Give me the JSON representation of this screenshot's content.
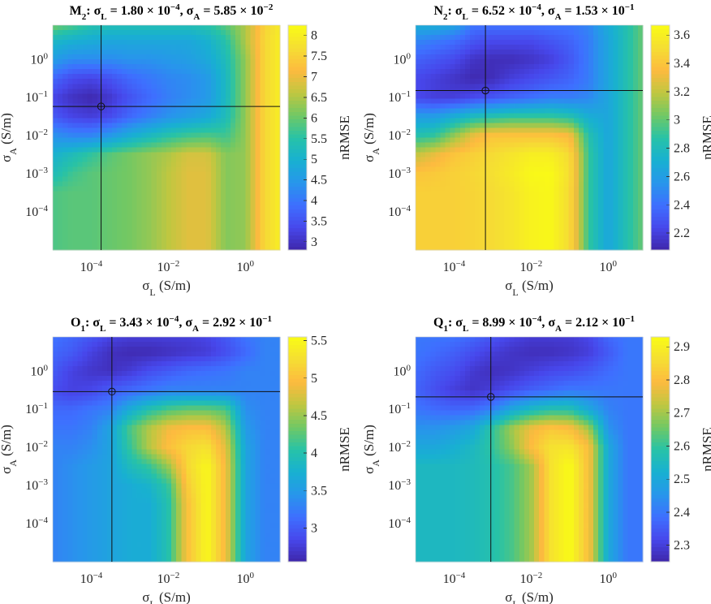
{
  "chart_data": [
    {
      "type": "heatmap",
      "title": {
        "constituent": "M",
        "constituent_sub": "2",
        "sigma_L": {
          "mantissa": "1.80",
          "exponent": "−4"
        },
        "sigma_A": {
          "mantissa": "5.85",
          "exponent": "−2"
        }
      },
      "best": {
        "sigma_L": 0.00018,
        "sigma_A": 0.0585
      },
      "colorbar": {
        "label": "nRMSE",
        "range": [
          2.8,
          8.25
        ],
        "ticks": [
          "3",
          "3.5",
          "4",
          "4.5",
          "5",
          "5.5",
          "6",
          "6.5",
          "7",
          "7.5",
          "8"
        ]
      },
      "z": [
        [
          6.3,
          6.0,
          5.6,
          5.5,
          5.5,
          5.5,
          5.5,
          5.5,
          5.6,
          6.0,
          6.5,
          7.5,
          8.0
        ],
        [
          5.2,
          5.0,
          4.9,
          4.8,
          4.8,
          4.8,
          4.8,
          4.8,
          5.0,
          5.5,
          6.5,
          7.6,
          8.1
        ],
        [
          4.6,
          4.3,
          4.3,
          4.3,
          4.4,
          4.4,
          4.5,
          4.6,
          4.8,
          5.3,
          6.3,
          7.6,
          8.1
        ],
        [
          3.8,
          3.4,
          3.3,
          3.5,
          3.8,
          4.0,
          4.2,
          4.3,
          4.5,
          5.2,
          6.3,
          7.6,
          8.1
        ],
        [
          3.3,
          3.0,
          2.85,
          3.1,
          3.5,
          3.8,
          4.1,
          4.3,
          4.5,
          5.2,
          6.3,
          7.6,
          8.1
        ],
        [
          3.6,
          3.3,
          3.2,
          3.4,
          3.8,
          4.1,
          4.4,
          4.6,
          4.8,
          5.3,
          6.3,
          7.6,
          8.1
        ],
        [
          4.4,
          4.2,
          4.2,
          4.5,
          4.9,
          5.2,
          5.5,
          5.7,
          5.8,
          5.7,
          6.3,
          7.6,
          8.1
        ],
        [
          5.0,
          5.3,
          5.6,
          5.9,
          6.1,
          6.3,
          6.5,
          6.8,
          6.8,
          6.2,
          6.3,
          7.6,
          8.1
        ],
        [
          5.3,
          5.7,
          5.9,
          6.0,
          6.1,
          6.3,
          6.6,
          6.9,
          6.9,
          6.2,
          6.3,
          7.6,
          8.1
        ],
        [
          5.8,
          5.9,
          5.9,
          6.0,
          6.1,
          6.3,
          6.6,
          6.9,
          6.9,
          6.2,
          6.3,
          7.6,
          8.1
        ],
        [
          5.8,
          5.9,
          5.9,
          6.0,
          6.1,
          6.3,
          6.6,
          6.9,
          6.9,
          6.2,
          6.3,
          7.6,
          8.1
        ],
        [
          5.8,
          5.9,
          5.9,
          6.0,
          6.1,
          6.3,
          6.6,
          6.9,
          6.9,
          6.2,
          6.3,
          7.6,
          8.1
        ],
        [
          5.8,
          5.9,
          5.9,
          6.0,
          6.1,
          6.3,
          6.6,
          6.9,
          6.9,
          6.2,
          6.3,
          7.6,
          8.1
        ]
      ]
    },
    {
      "type": "heatmap",
      "title": {
        "constituent": "N",
        "constituent_sub": "2",
        "sigma_L": {
          "mantissa": "6.52",
          "exponent": "−4"
        },
        "sigma_A": {
          "mantissa": "1.53",
          "exponent": "−1"
        }
      },
      "best": {
        "sigma_L": 0.000652,
        "sigma_A": 0.153
      },
      "colorbar": {
        "label": "nRMSE",
        "range": [
          2.08,
          3.67
        ],
        "ticks": [
          "2.2",
          "2.4",
          "2.6",
          "2.8",
          "3",
          "3.2",
          "3.4",
          "3.6"
        ]
      },
      "z": [
        [
          2.75,
          2.75,
          2.7,
          2.45,
          2.45,
          2.45,
          2.45,
          2.45,
          2.45,
          2.5,
          2.7,
          2.85,
          3.05
        ],
        [
          2.5,
          2.45,
          2.4,
          2.3,
          2.25,
          2.25,
          2.25,
          2.3,
          2.35,
          2.45,
          2.65,
          2.85,
          3.05
        ],
        [
          2.35,
          2.3,
          2.25,
          2.15,
          2.12,
          2.12,
          2.15,
          2.2,
          2.3,
          2.45,
          2.65,
          2.85,
          3.05
        ],
        [
          2.25,
          2.2,
          2.15,
          2.1,
          2.12,
          2.2,
          2.25,
          2.3,
          2.35,
          2.45,
          2.65,
          2.85,
          3.05
        ],
        [
          2.25,
          2.2,
          2.2,
          2.25,
          2.3,
          2.35,
          2.4,
          2.45,
          2.45,
          2.5,
          2.65,
          2.85,
          3.05
        ],
        [
          2.6,
          2.6,
          2.7,
          2.8,
          2.85,
          2.9,
          2.9,
          2.9,
          2.85,
          2.7,
          2.65,
          2.85,
          3.05
        ],
        [
          2.85,
          2.9,
          3.1,
          3.3,
          3.4,
          3.4,
          3.4,
          3.4,
          3.35,
          2.85,
          2.65,
          2.85,
          3.05
        ],
        [
          3.2,
          3.3,
          3.4,
          3.45,
          3.5,
          3.55,
          3.6,
          3.6,
          3.5,
          2.9,
          2.65,
          2.85,
          3.05
        ],
        [
          3.4,
          3.42,
          3.45,
          3.48,
          3.52,
          3.58,
          3.65,
          3.66,
          3.52,
          2.9,
          2.65,
          2.85,
          3.05
        ],
        [
          3.45,
          3.45,
          3.45,
          3.47,
          3.5,
          3.55,
          3.62,
          3.65,
          3.5,
          2.9,
          2.65,
          2.85,
          3.05
        ],
        [
          3.45,
          3.45,
          3.45,
          3.47,
          3.5,
          3.55,
          3.62,
          3.65,
          3.5,
          2.9,
          2.65,
          2.85,
          3.05
        ],
        [
          3.45,
          3.45,
          3.45,
          3.47,
          3.5,
          3.55,
          3.62,
          3.65,
          3.5,
          2.9,
          2.65,
          2.85,
          3.05
        ],
        [
          3.45,
          3.45,
          3.45,
          3.47,
          3.5,
          3.55,
          3.62,
          3.65,
          3.5,
          2.9,
          2.65,
          2.85,
          3.05
        ]
      ]
    },
    {
      "type": "heatmap",
      "title": {
        "constituent": "O",
        "constituent_sub": "1",
        "sigma_L": {
          "mantissa": "3.43",
          "exponent": "−4"
        },
        "sigma_A": {
          "mantissa": "2.92",
          "exponent": "−1"
        }
      },
      "best": {
        "sigma_L": 0.000343,
        "sigma_A": 0.292
      },
      "colorbar": {
        "label": "nRMSE",
        "range": [
          2.55,
          5.55
        ],
        "ticks": [
          "3",
          "3.5",
          "4",
          "4.5",
          "5",
          "5.5"
        ]
      },
      "z": [
        [
          3.2,
          3.1,
          3.0,
          2.85,
          2.8,
          2.8,
          2.8,
          2.8,
          2.85,
          3.0,
          3.2,
          3.3,
          3.3
        ],
        [
          3.1,
          3.0,
          2.8,
          2.65,
          2.6,
          2.6,
          2.65,
          2.7,
          2.75,
          2.9,
          3.1,
          3.3,
          3.3
        ],
        [
          3.0,
          2.8,
          2.7,
          2.65,
          2.75,
          2.9,
          3.0,
          3.1,
          3.15,
          3.2,
          3.3,
          3.3,
          3.3
        ],
        [
          2.9,
          2.8,
          2.85,
          3.0,
          3.1,
          3.2,
          3.3,
          3.3,
          3.3,
          3.3,
          3.3,
          3.3,
          3.3
        ],
        [
          3.1,
          3.1,
          3.2,
          3.3,
          3.7,
          4.0,
          4.2,
          4.3,
          4.3,
          4.2,
          3.4,
          3.3,
          3.3
        ],
        [
          3.2,
          3.2,
          3.3,
          3.6,
          4.2,
          4.6,
          4.9,
          5.0,
          5.0,
          4.6,
          3.5,
          3.3,
          3.3
        ],
        [
          3.3,
          3.3,
          3.4,
          3.6,
          4.1,
          4.6,
          5.0,
          5.2,
          5.3,
          4.8,
          3.6,
          3.3,
          3.3
        ],
        [
          3.3,
          3.4,
          3.5,
          3.6,
          3.9,
          4.1,
          4.5,
          5.2,
          5.5,
          4.9,
          3.6,
          3.3,
          3.3
        ],
        [
          3.3,
          3.4,
          3.5,
          3.6,
          3.7,
          3.8,
          4.1,
          5.1,
          5.5,
          4.9,
          3.6,
          3.3,
          3.3
        ],
        [
          3.3,
          3.4,
          3.5,
          3.6,
          3.7,
          3.7,
          4.0,
          5.0,
          5.5,
          4.9,
          3.6,
          3.3,
          3.3
        ],
        [
          3.3,
          3.4,
          3.5,
          3.6,
          3.7,
          3.7,
          4.0,
          5.0,
          5.5,
          4.9,
          3.6,
          3.3,
          3.3
        ],
        [
          3.3,
          3.4,
          3.5,
          3.6,
          3.7,
          3.7,
          4.0,
          5.0,
          5.5,
          4.9,
          3.6,
          3.3,
          3.3
        ],
        [
          3.3,
          3.4,
          3.5,
          3.6,
          3.7,
          3.7,
          4.0,
          5.0,
          5.5,
          4.9,
          3.6,
          3.3,
          3.3
        ]
      ]
    },
    {
      "type": "heatmap",
      "title": {
        "constituent": "Q",
        "constituent_sub": "1",
        "sigma_L": {
          "mantissa": "8.99",
          "exponent": "−4"
        },
        "sigma_A": {
          "mantissa": "2.12",
          "exponent": "−1"
        }
      },
      "best": {
        "sigma_L": 0.000899,
        "sigma_A": 0.212
      },
      "colorbar": {
        "label": "nRMSE",
        "range": [
          2.25,
          2.93
        ],
        "ticks": [
          "2.3",
          "2.4",
          "2.5",
          "2.6",
          "2.7",
          "2.8",
          "2.9"
        ]
      },
      "z": [
        [
          2.4,
          2.4,
          2.4,
          2.38,
          2.35,
          2.32,
          2.3,
          2.3,
          2.3,
          2.32,
          2.38,
          2.4,
          2.4
        ],
        [
          2.4,
          2.38,
          2.36,
          2.33,
          2.3,
          2.28,
          2.27,
          2.27,
          2.28,
          2.3,
          2.35,
          2.4,
          2.4
        ],
        [
          2.38,
          2.35,
          2.33,
          2.29,
          2.27,
          2.28,
          2.3,
          2.32,
          2.33,
          2.35,
          2.38,
          2.4,
          2.4
        ],
        [
          2.37,
          2.33,
          2.3,
          2.28,
          2.3,
          2.33,
          2.36,
          2.38,
          2.4,
          2.4,
          2.4,
          2.4,
          2.4
        ],
        [
          2.4,
          2.38,
          2.37,
          2.38,
          2.42,
          2.5,
          2.55,
          2.58,
          2.58,
          2.5,
          2.42,
          2.4,
          2.4
        ],
        [
          2.45,
          2.45,
          2.47,
          2.5,
          2.6,
          2.7,
          2.78,
          2.82,
          2.8,
          2.7,
          2.45,
          2.4,
          2.4
        ],
        [
          2.5,
          2.5,
          2.52,
          2.55,
          2.6,
          2.68,
          2.8,
          2.87,
          2.88,
          2.8,
          2.5,
          2.4,
          2.4
        ],
        [
          2.55,
          2.55,
          2.55,
          2.56,
          2.58,
          2.62,
          2.7,
          2.87,
          2.93,
          2.8,
          2.5,
          2.4,
          2.4
        ],
        [
          2.55,
          2.55,
          2.55,
          2.56,
          2.58,
          2.62,
          2.7,
          2.87,
          2.93,
          2.8,
          2.5,
          2.4,
          2.4
        ],
        [
          2.55,
          2.55,
          2.55,
          2.56,
          2.58,
          2.62,
          2.7,
          2.87,
          2.93,
          2.8,
          2.5,
          2.4,
          2.4
        ],
        [
          2.55,
          2.55,
          2.55,
          2.56,
          2.58,
          2.62,
          2.7,
          2.87,
          2.93,
          2.8,
          2.5,
          2.4,
          2.4
        ],
        [
          2.55,
          2.55,
          2.55,
          2.56,
          2.58,
          2.62,
          2.7,
          2.87,
          2.93,
          2.8,
          2.5,
          2.4,
          2.4
        ],
        [
          2.55,
          2.55,
          2.55,
          2.56,
          2.58,
          2.62,
          2.7,
          2.87,
          2.93,
          2.8,
          2.5,
          2.4,
          2.4
        ]
      ]
    }
  ],
  "grid": {
    "x_log10": [
      -5,
      -4.5,
      -4,
      -3.5,
      -3,
      -2.5,
      -2,
      -1.5,
      -1,
      -0.5,
      0,
      0.5,
      1
    ],
    "y_log10": [
      1,
      0.5,
      0,
      -0.5,
      -1,
      -1.5,
      -2,
      -2.5,
      -3,
      -3.5,
      -4,
      -4.5,
      -5
    ]
  },
  "axes": {
    "x": {
      "symbol": "σ",
      "sub": "L",
      "unit": " (S/m)",
      "log_range": [
        -5,
        0.9
      ],
      "tick_base": "10",
      "ticks": [
        -4,
        -2,
        0
      ],
      "tick_exponents": [
        "−4",
        "−2",
        "0"
      ]
    },
    "y": {
      "symbol": "σ",
      "sub": "A",
      "unit": " (S/m)",
      "log_range": [
        -5,
        0.9
      ],
      "tick_base": "10",
      "ticks": [
        0,
        -1,
        -2,
        -3,
        -4
      ],
      "tick_exponents": [
        "0",
        "−1",
        "−2",
        "−3",
        "−4"
      ]
    }
  },
  "title_text": {
    "sigma": "σ",
    "eq": " = ",
    "times": " × ",
    "base": "10",
    "sep": ", ",
    "colon": ": "
  }
}
